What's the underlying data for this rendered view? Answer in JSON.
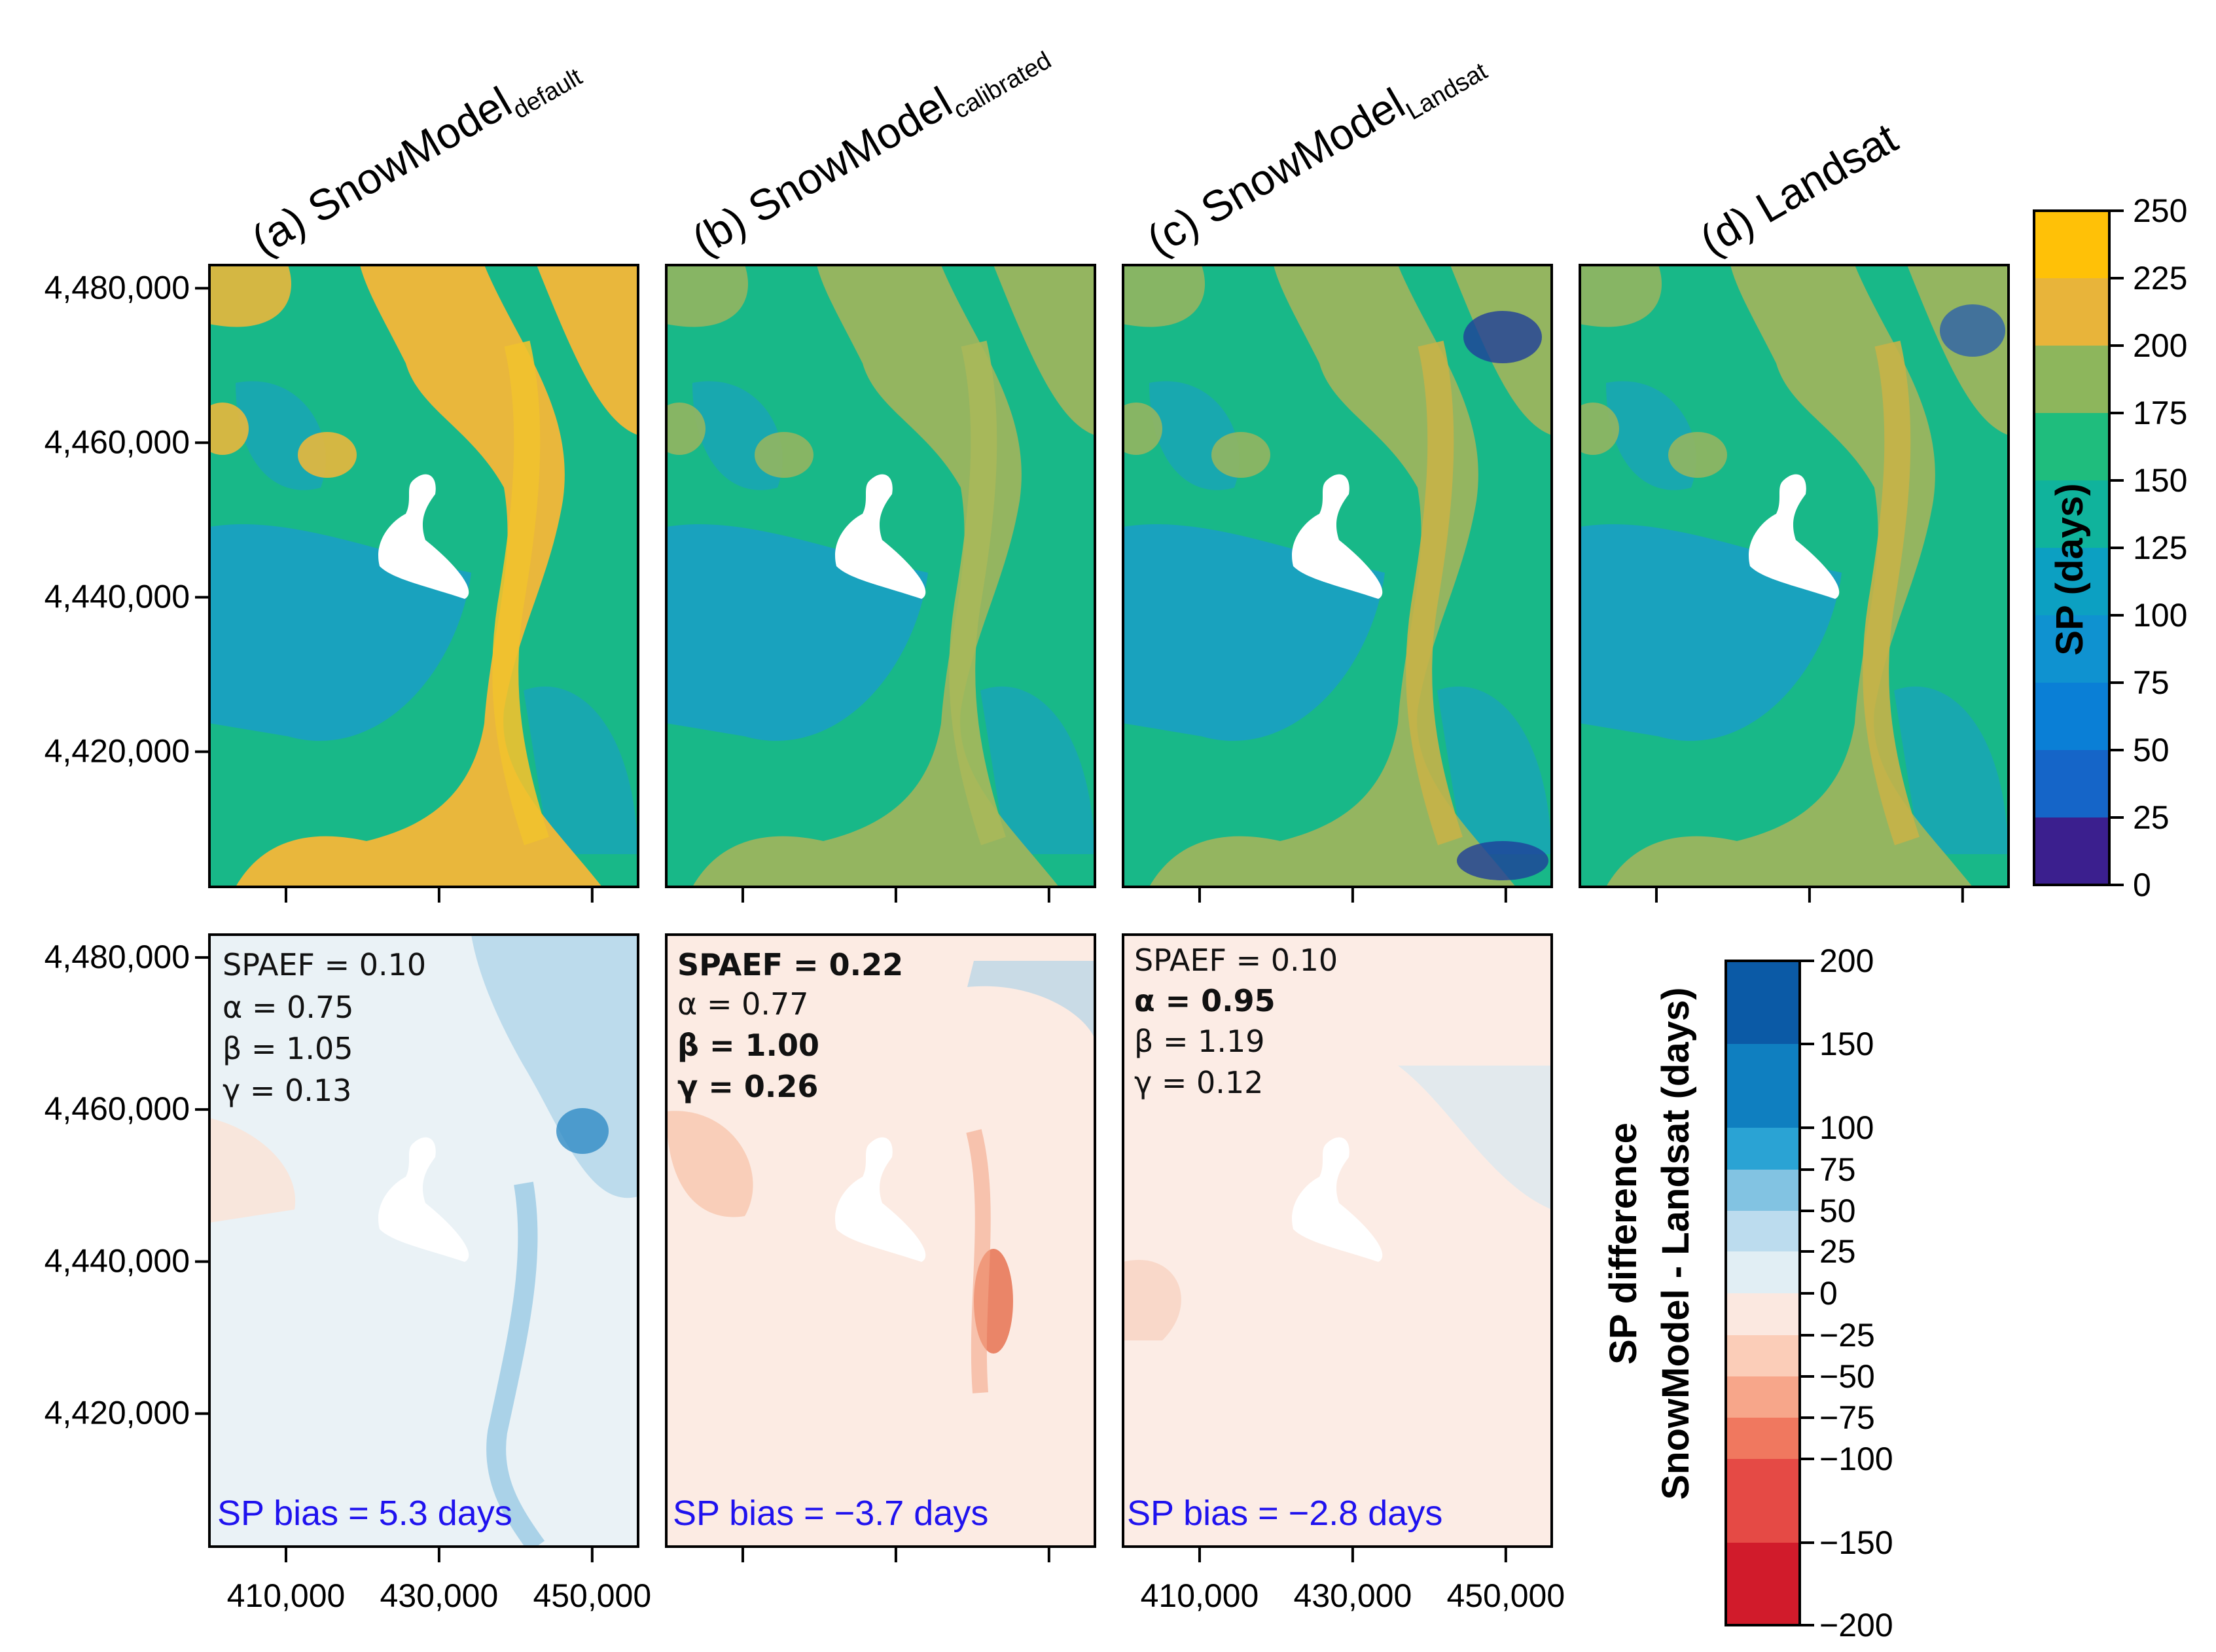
{
  "chart_data": {
    "type": "heatmap",
    "description_panels": "Snow persistence maps (top row) and difference maps vs Landsat (bottom row)",
    "top_row": [
      {
        "id": "a",
        "title_prefix": "(a) SnowModel",
        "title_sub": "default",
        "palette_bias": 0.78
      },
      {
        "id": "b",
        "title_prefix": "(b) SnowModel",
        "title_sub": "calibrated",
        "palette_bias": 0.55
      },
      {
        "id": "c",
        "title_prefix": "(c) SnowModel",
        "title_sub": "Landsat",
        "palette_bias": 0.5
      },
      {
        "id": "d",
        "title_prefix": "(d) Landsat",
        "title_sub": "",
        "palette_bias": 0.52
      }
    ],
    "bottom_row": [
      {
        "id": "a",
        "metrics": [
          {
            "text": "SPAEF = 0.10",
            "bold": false
          },
          {
            "text": "α = 0.75",
            "bold": false
          },
          {
            "text": "β = 1.05",
            "bold": false
          },
          {
            "text": "γ = 0.13",
            "bold": false
          }
        ],
        "bias": "SP bias = 5.3 days",
        "bias_value": 5.3
      },
      {
        "id": "b",
        "metrics": [
          {
            "text": "SPAEF = 0.22",
            "bold": true
          },
          {
            "text": "α = 0.77",
            "bold": false
          },
          {
            "text": "β = 1.00",
            "bold": true
          },
          {
            "text": "γ = 0.26",
            "bold": true
          }
        ],
        "bias": "SP bias = −3.7 days",
        "bias_value": -3.7
      },
      {
        "id": "c",
        "metrics": [
          {
            "text": "SPAEF = 0.10",
            "bold": false
          },
          {
            "text": "α = 0.95",
            "bold": true
          },
          {
            "text": "β = 1.19",
            "bold": false
          },
          {
            "text": "γ = 0.12",
            "bold": false
          }
        ],
        "bias": "SP bias = −2.8 days",
        "bias_value": -2.8
      }
    ],
    "y_ticks": [
      "4,480,000",
      "4,460,000",
      "4,440,000",
      "4,420,000"
    ],
    "y_values": [
      4480000,
      4460000,
      4440000,
      4420000
    ],
    "ylim": [
      4402500,
      4483000
    ],
    "x_ticks": [
      "410,000",
      "430,000",
      "450,000"
    ],
    "x_values": [
      410000,
      430000,
      450000
    ],
    "xlim": [
      400000,
      456000
    ],
    "sp_colorbar": {
      "label": "SP (days)",
      "ticks": [
        "0",
        "25",
        "50",
        "75",
        "100",
        "125",
        "150",
        "175",
        "200",
        "225",
        "250"
      ],
      "breaks": [
        0,
        25,
        50,
        75,
        100,
        125,
        150,
        175,
        200,
        225,
        250
      ],
      "colors": [
        "#3b1f8e",
        "#1565c8",
        "#0a7fd6",
        "#0f92d0",
        "#0ca0c2",
        "#10b39c",
        "#1fbd7d",
        "#8db65c",
        "#e8b43a",
        "#ffc107",
        "#f7ef16"
      ]
    },
    "diff_colorbar": {
      "label_line1": "SP difference",
      "label_line2": "SnowModel - Landsat (days)",
      "ticks": [
        "200",
        "150",
        "100",
        "75",
        "50",
        "25",
        "0",
        "−25",
        "−50",
        "−75",
        "−100",
        "−150",
        "−200"
      ],
      "breaks": [
        200,
        150,
        100,
        75,
        50,
        25,
        0,
        -25,
        -50,
        -75,
        -100,
        -150,
        -200
      ],
      "colors": [
        "#0b5aa6",
        "#0f7fc0",
        "#2aa3d4",
        "#82c3e2",
        "#bcdcee",
        "#e1eef4",
        "#fbe8e0",
        "#fbcdb8",
        "#f7a68a",
        "#f0785f",
        "#e54a45",
        "#d11b2b"
      ]
    }
  }
}
